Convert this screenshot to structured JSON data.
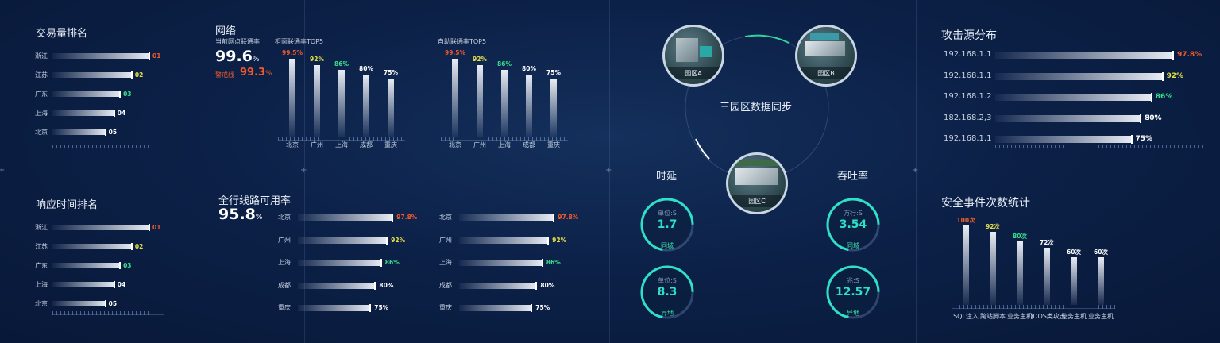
{
  "colors": {
    "rank1": "#f05a2a",
    "rank2": "#e6e04a",
    "rank3": "#3ae08c",
    "rank_other": "#ffffff",
    "teal": "#2fe0c8"
  },
  "trade_rank": {
    "title": "交易量排名",
    "items": [
      {
        "label": "浙江",
        "value": 100,
        "rank": "01"
      },
      {
        "label": "江苏",
        "value": 82,
        "rank": "02"
      },
      {
        "label": "广东",
        "value": 70,
        "rank": "03"
      },
      {
        "label": "上海",
        "value": 64,
        "rank": "04"
      },
      {
        "label": "北京",
        "value": 55,
        "rank": "05"
      }
    ]
  },
  "response_rank": {
    "title": "响应时间排名",
    "items": [
      {
        "label": "浙江",
        "value": 100,
        "rank": "01"
      },
      {
        "label": "江苏",
        "value": 82,
        "rank": "02"
      },
      {
        "label": "广东",
        "value": 70,
        "rank": "03"
      },
      {
        "label": "上海",
        "value": 64,
        "rank": "04"
      },
      {
        "label": "北京",
        "value": 55,
        "rank": "05"
      }
    ]
  },
  "network": {
    "title": "网络",
    "current_label": "当前网点联通率",
    "current_value": "99.6",
    "unit": "%",
    "warn_label": "警戒线",
    "warn_value": "99.3"
  },
  "availability": {
    "title": "全行线路可用率",
    "value": "95.8",
    "unit": "%"
  },
  "chart_data": [
    {
      "type": "bar",
      "title": "柜面联通率TOP5",
      "categories": [
        "北京",
        "广州",
        "上海",
        "成都",
        "重庆"
      ],
      "values": [
        99.5,
        92,
        86,
        80,
        75
      ],
      "labels": [
        "99.5%",
        "92%",
        "86%",
        "80%",
        "75%"
      ],
      "ylim": [
        0,
        100
      ]
    },
    {
      "type": "bar",
      "title": "自助联通率TOP5",
      "categories": [
        "北京",
        "广州",
        "上海",
        "成都",
        "重庆"
      ],
      "values": [
        99.5,
        92,
        86,
        80,
        75
      ],
      "labels": [
        "99.5%",
        "92%",
        "86%",
        "80%",
        "75%"
      ],
      "ylim": [
        0,
        100
      ]
    },
    {
      "type": "bar",
      "orientation": "horizontal",
      "categories": [
        "北京",
        "广州",
        "上海",
        "成都",
        "重庆"
      ],
      "values": [
        97.8,
        92,
        86,
        80,
        75
      ],
      "labels": [
        "97.8%",
        "92%",
        "86%",
        "80%",
        "75%"
      ]
    },
    {
      "type": "bar",
      "orientation": "horizontal",
      "categories": [
        "北京",
        "广州",
        "上海",
        "成都",
        "重庆"
      ],
      "values": [
        97.8,
        92,
        86,
        80,
        75
      ],
      "labels": [
        "97.8%",
        "92%",
        "86%",
        "80%",
        "75%"
      ]
    },
    {
      "type": "bar",
      "orientation": "horizontal",
      "title": "攻击源分布",
      "categories": [
        "192.168.1.1",
        "192.168.1.1",
        "192.168.1.2",
        "182.168.2,3",
        "192.168.1.1"
      ],
      "values": [
        97.8,
        92,
        86,
        80,
        75
      ],
      "labels": [
        "97.8%",
        "92%",
        "86%",
        "80%",
        "75%"
      ]
    },
    {
      "type": "bar",
      "title": "安全事件次数统计",
      "categories": [
        "SQL注入",
        "跨站脚本",
        "业务主机",
        "DDOS类攻击",
        "业务主机",
        "业务主机"
      ],
      "values": [
        100,
        92,
        80,
        72,
        60,
        60
      ],
      "labels": [
        "100次",
        "92次",
        "80次",
        "72次",
        "60次",
        "60次"
      ],
      "ylim": [
        0,
        100
      ]
    }
  ],
  "sync": {
    "title": "三园区数据同步",
    "sites": [
      "园区A",
      "园区B",
      "园区C"
    ]
  },
  "latency": {
    "title": "时延",
    "gauges": [
      {
        "unit": "单位:S",
        "value": "1.7",
        "label": "同城",
        "fraction": 0.72
      },
      {
        "unit": "单位:S",
        "value": "8.3",
        "label": "异地",
        "fraction": 0.72
      }
    ]
  },
  "throughput": {
    "title": "吞吐率",
    "gauges": [
      {
        "unit": "万行:S",
        "value": "3.54",
        "label": "同城",
        "fraction": 0.72
      },
      {
        "unit": "兆:S",
        "value": "12.57",
        "label": "异地",
        "fraction": 0.72
      }
    ]
  }
}
